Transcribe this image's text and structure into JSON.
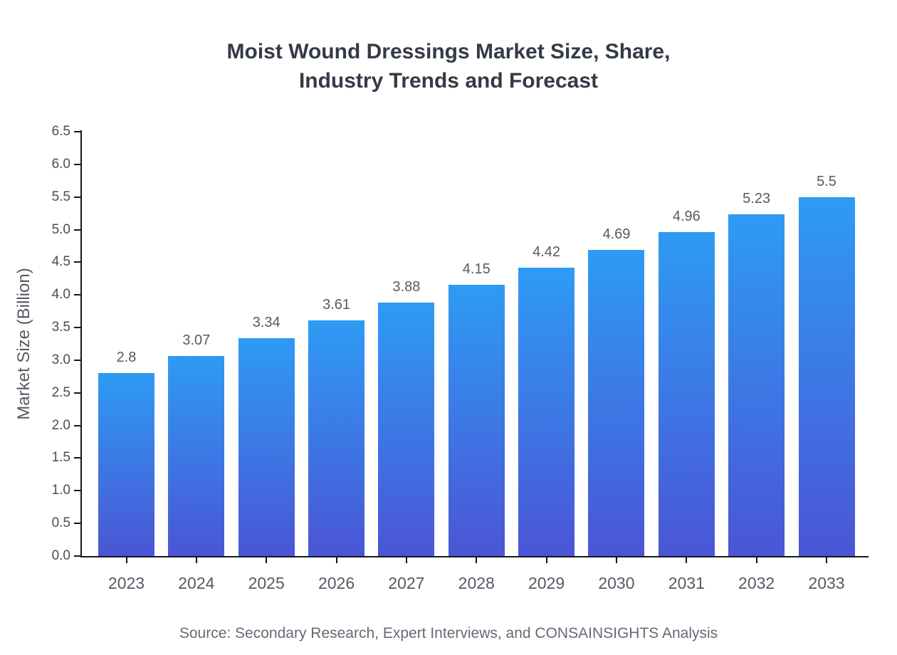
{
  "title_display": "Moist Wound Dressings Market Size, Share,\nIndustry Trends and Forecast",
  "source": "Source: Secondary Research, Expert Interviews, and CONSAINSIGHTS Analysis",
  "colors": {
    "bar_top": "#2E9BF4",
    "bar_bottom": "#4B55D5",
    "axis": "#15181d",
    "title": "#343a46",
    "tick_label": "#555a63",
    "value_label": "#555a63",
    "source": "#646a75"
  },
  "chart_data": {
    "type": "bar",
    "title": "Moist Wound Dressings Market Size, Share, Industry Trends and Forecast",
    "categories": [
      "2023",
      "2024",
      "2025",
      "2026",
      "2027",
      "2028",
      "2029",
      "2030",
      "2031",
      "2032",
      "2033"
    ],
    "values": [
      2.8,
      3.07,
      3.34,
      3.61,
      3.88,
      4.15,
      4.42,
      4.69,
      4.96,
      5.23,
      5.5
    ],
    "value_labels": [
      "2.8",
      "3.07",
      "3.34",
      "3.61",
      "3.88",
      "4.15",
      "4.42",
      "4.69",
      "4.96",
      "5.23",
      "5.5"
    ],
    "xlabel": "",
    "ylabel": "Market Size (Billion)",
    "ylim": [
      0,
      6.5
    ],
    "y_ticks": [
      0.0,
      0.5,
      1.0,
      1.5,
      2.0,
      2.5,
      3.0,
      3.5,
      4.0,
      4.5,
      5.0,
      5.5,
      6.0,
      6.5
    ],
    "y_tick_labels": [
      "0.0",
      "0.5",
      "1.0",
      "1.5",
      "2.0",
      "2.5",
      "3.0",
      "3.5",
      "4.0",
      "4.5",
      "5.0",
      "5.5",
      "6.0",
      "6.5"
    ],
    "grid": false,
    "legend": false,
    "legend_position": "none"
  }
}
